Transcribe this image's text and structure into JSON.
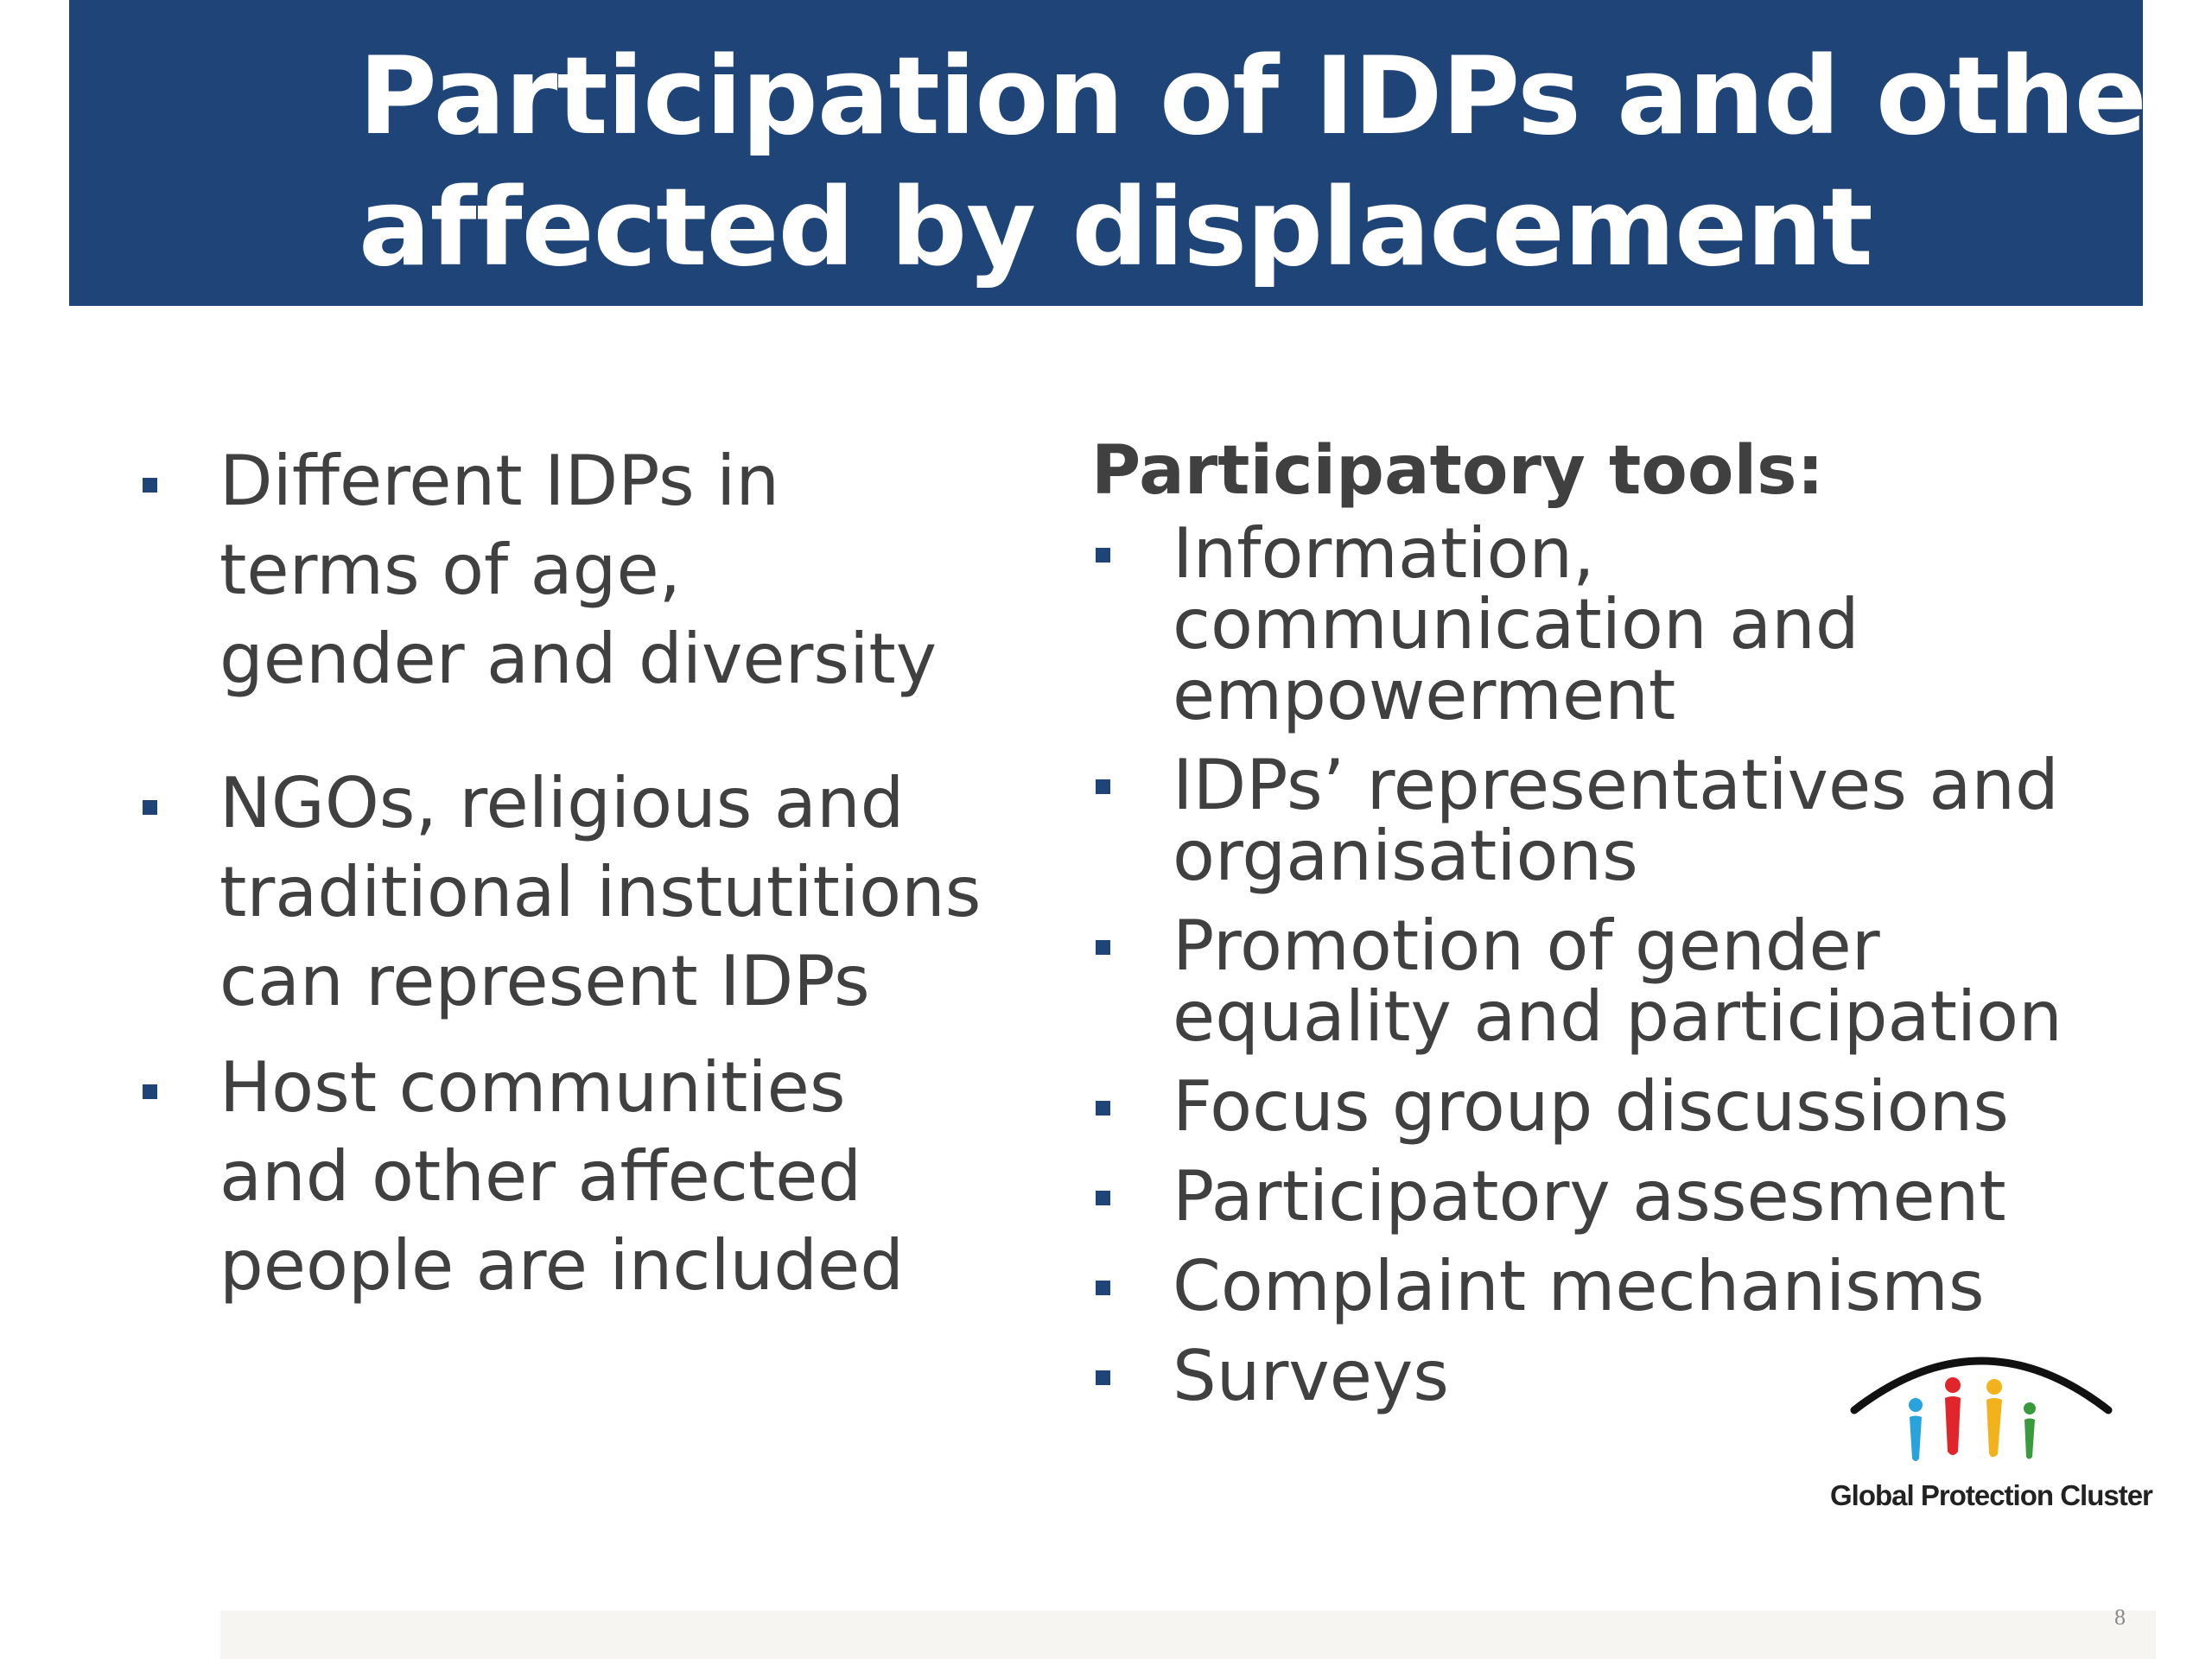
{
  "slide": {
    "title_lines": [
      "Participation of IDPs and others",
      "affected by displacement"
    ],
    "left_items": [
      [
        "Different IDPs in",
        "terms of age,",
        "gender and diversity"
      ],
      [
        "NGOs, religious and",
        "traditional instutitions",
        "can represent IDPs"
      ],
      [
        "Host communities",
        "and other affected",
        "people are included"
      ]
    ],
    "right_heading": "Participatory tools:",
    "right_items": [
      [
        "Information,",
        "communication and",
        "empowerment"
      ],
      [
        "IDPs’ representatives and",
        "organisations"
      ],
      [
        "Promotion of gender",
        "equality and participation"
      ],
      [
        "Focus group discussions"
      ],
      [
        "Participatory assesment"
      ],
      [
        "Complaint mechanisms"
      ],
      [
        "Surveys"
      ]
    ],
    "logo_text": "Global Protection Cluster",
    "page_number": "8"
  },
  "colors": {
    "title_bar": "#1f4578",
    "bullet": "#1f4578",
    "body_text": "#404040",
    "logo_blue": "#29a3dc",
    "logo_red": "#e0262b",
    "logo_yellow": "#f2b21b",
    "logo_green": "#3a9b3e"
  }
}
